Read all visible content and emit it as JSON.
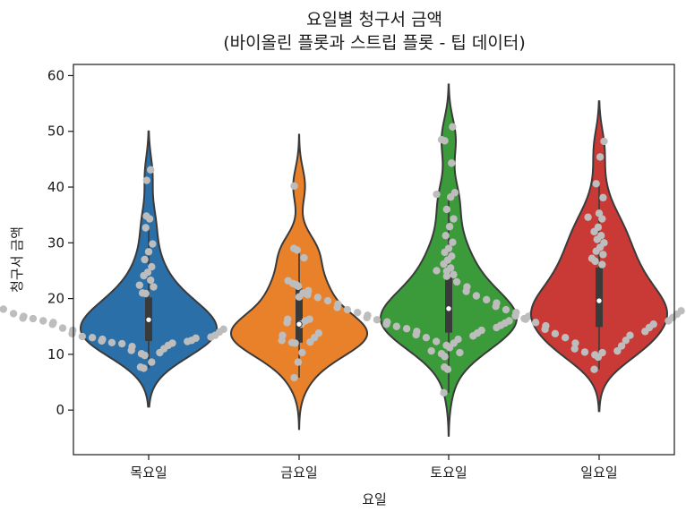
{
  "chart_data": {
    "type": "violin",
    "title": "요일별 청구서 금액",
    "subtitle": "(바이올린 플롯과 스트립 플롯 - 팁 데이터)",
    "xlabel": "요일",
    "ylabel": "청구서 금액",
    "categories": [
      "목요일",
      "금요일",
      "토요일",
      "일요일"
    ],
    "ylim": [
      -8,
      62
    ],
    "yticks": [
      0,
      10,
      20,
      30,
      40,
      50,
      60
    ],
    "colors": [
      "#2a6fa8",
      "#e8812a",
      "#3b9a39",
      "#c93a36"
    ],
    "strip_color": "#bdbdbd",
    "violins": [
      {
        "category": "목요일",
        "kde_range": [
          0.6,
          50.0
        ],
        "quartiles": [
          12.4,
          16.2,
          20.2
        ],
        "whiskers": [
          7.5,
          32.7
        ],
        "points": [
          7.5,
          7.7,
          8.6,
          9.8,
          10.1,
          10.3,
          10.7,
          11.0,
          11.4,
          11.6,
          11.9,
          12.0,
          12.1,
          12.3,
          12.4,
          12.5,
          12.7,
          12.9,
          13.0,
          13.1,
          13.2,
          13.4,
          13.7,
          14.0,
          14.3,
          14.5,
          14.7,
          15.0,
          15.4,
          15.5,
          15.7,
          15.9,
          16.0,
          16.3,
          16.4,
          16.5,
          16.5,
          16.7,
          16.8,
          17.0,
          17.3,
          17.7,
          18.1,
          18.3,
          18.7,
          19.1,
          19.4,
          19.8,
          20.2,
          20.3,
          20.9,
          21.0,
          22.1,
          22.4,
          23.3,
          24.1,
          24.7,
          25.7,
          27.0,
          28.4,
          29.8,
          32.7,
          34.3,
          34.8,
          41.2,
          43.1
        ]
      },
      {
        "category": "금요일",
        "kde_range": [
          -3.4,
          49.4
        ],
        "quartiles": [
          12.1,
          15.4,
          21.8
        ],
        "whiskers": [
          5.8,
          29.0
        ],
        "points": [
          5.8,
          8.6,
          10.3,
          12.0,
          12.1,
          12.2,
          12.5,
          13.0,
          13.4,
          13.8,
          15.4,
          15.7,
          16.0,
          16.3,
          16.3,
          20.3,
          21.0,
          22.5,
          22.7,
          27.3,
          28.7,
          29.0,
          40.2
        ]
      },
      {
        "category": "토요일",
        "kde_range": [
          -4.6,
          58.4
        ],
        "quartiles": [
          13.9,
          18.2,
          24.8
        ],
        "whiskers": [
          3.1,
          38.7
        ],
        "points": [
          3.1,
          7.3,
          7.7,
          9.6,
          10.1,
          10.3,
          10.6,
          11.2,
          11.6,
          12.0,
          12.3,
          12.7,
          13.0,
          13.3,
          13.5,
          13.8,
          14.1,
          14.3,
          14.6,
          14.8,
          15.0,
          15.2,
          15.4,
          15.6,
          15.8,
          16.0,
          16.2,
          16.4,
          16.6,
          16.8,
          17.0,
          17.3,
          17.5,
          17.8,
          18.0,
          18.2,
          18.4,
          18.7,
          19.0,
          19.3,
          19.6,
          19.9,
          20.2,
          20.5,
          20.7,
          21.0,
          21.4,
          21.8,
          22.2,
          22.7,
          23.2,
          23.7,
          24.3,
          24.9,
          25.5,
          26.2,
          26.9,
          27.6,
          28.3,
          29.0,
          30.1,
          31.3,
          32.9,
          34.3,
          36.0,
          38.2,
          38.7,
          39.0,
          44.3,
          48.3,
          48.5,
          50.8
        ]
      },
      {
        "category": "일요일",
        "kde_range": [
          -0.2,
          55.4
        ],
        "quartiles": [
          14.9,
          19.6,
          25.6
        ],
        "whiskers": [
          7.3,
          40.6
        ],
        "points": [
          7.3,
          9.5,
          9.9,
          10.3,
          10.4,
          10.6,
          11.0,
          11.5,
          12.0,
          12.5,
          13.0,
          13.4,
          13.7,
          14.1,
          14.5,
          14.8,
          15.1,
          15.4,
          15.7,
          16.0,
          16.3,
          16.6,
          16.9,
          17.2,
          17.5,
          17.8,
          18.0,
          18.3,
          18.6,
          18.9,
          19.2,
          19.5,
          19.8,
          20.1,
          20.5,
          20.9,
          21.3,
          21.7,
          22.1,
          22.6,
          23.0,
          23.5,
          24.0,
          24.5,
          25.0,
          25.5,
          26.1,
          26.7,
          27.2,
          27.9,
          28.5,
          29.2,
          30.0,
          30.6,
          31.3,
          32.0,
          32.8,
          34.3,
          34.6,
          35.3,
          38.1,
          40.6,
          45.4,
          48.2
        ]
      }
    ]
  }
}
